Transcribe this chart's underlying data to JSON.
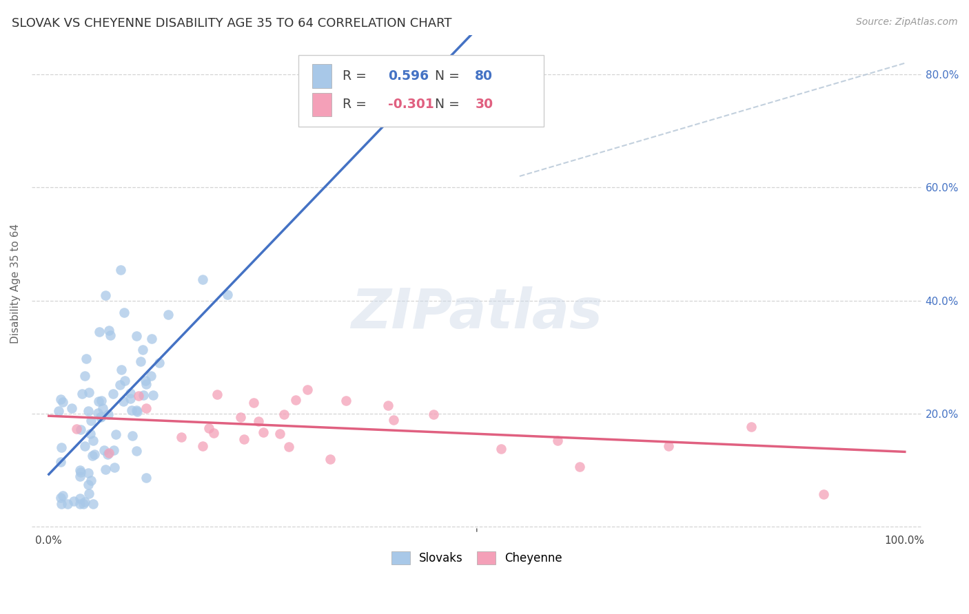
{
  "title": "SLOVAK VS CHEYENNE DISABILITY AGE 35 TO 64 CORRELATION CHART",
  "source": "Source: ZipAtlas.com",
  "ylabel": "Disability Age 35 to 64",
  "xlim": [
    0.0,
    1.0
  ],
  "ylim": [
    0.0,
    0.85
  ],
  "slovak_color": "#a8c8e8",
  "cheyenne_color": "#f4a0b8",
  "slovak_line_color": "#4472c4",
  "cheyenne_line_color": "#e06080",
  "diag_line_color": "#b8c8d8",
  "background_color": "#ffffff",
  "grid_color": "#d0d0d0",
  "watermark": "ZIPatlas",
  "legend_labels": [
    "Slovaks",
    "Cheyenne"
  ],
  "title_fontsize": 13,
  "axis_label_fontsize": 11,
  "tick_fontsize": 11,
  "source_fontsize": 10,
  "slovak_R": "0.596",
  "slovak_N": "80",
  "cheyenne_R": "-0.301",
  "cheyenne_N": "30"
}
